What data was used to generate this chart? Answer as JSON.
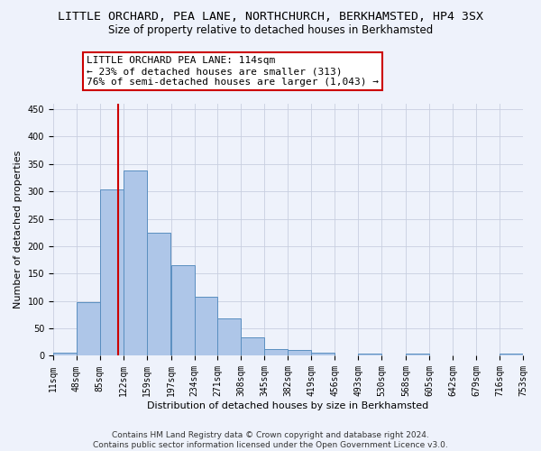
{
  "title_line1": "LITTLE ORCHARD, PEA LANE, NORTHCHURCH, BERKHAMSTED, HP4 3SX",
  "title_line2": "Size of property relative to detached houses in Berkhamsted",
  "xlabel": "Distribution of detached houses by size in Berkhamsted",
  "ylabel": "Number of detached properties",
  "bin_edges": [
    11,
    48,
    85,
    122,
    159,
    197,
    234,
    271,
    308,
    345,
    382,
    419,
    456,
    493,
    530,
    568,
    605,
    642,
    679,
    716,
    753
  ],
  "bin_labels": [
    "11sqm",
    "48sqm",
    "85sqm",
    "122sqm",
    "159sqm",
    "197sqm",
    "234sqm",
    "271sqm",
    "308sqm",
    "345sqm",
    "382sqm",
    "419sqm",
    "456sqm",
    "493sqm",
    "530sqm",
    "568sqm",
    "605sqm",
    "642sqm",
    "679sqm",
    "716sqm",
    "753sqm"
  ],
  "bar_heights": [
    5,
    98,
    303,
    338,
    225,
    165,
    108,
    68,
    33,
    13,
    11,
    6,
    0,
    4,
    0,
    4,
    0,
    0,
    0,
    4
  ],
  "bar_color": "#aec6e8",
  "bar_edge_color": "#5a8fc0",
  "vline_x": 114,
  "vline_color": "#cc0000",
  "annotation_line1": "LITTLE ORCHARD PEA LANE: 114sqm",
  "annotation_line2": "← 23% of detached houses are smaller (313)",
  "annotation_line3": "76% of semi-detached houses are larger (1,043) →",
  "annotation_box_color": "#ffffff",
  "annotation_box_edge": "#cc0000",
  "ylim": [
    0,
    460
  ],
  "yticks": [
    0,
    50,
    100,
    150,
    200,
    250,
    300,
    350,
    400,
    450
  ],
  "bg_color": "#eef2fb",
  "plot_bg": "#eef2fb",
  "footer_text": "Contains HM Land Registry data © Crown copyright and database right 2024.\nContains public sector information licensed under the Open Government Licence v3.0.",
  "title_fontsize": 9.5,
  "subtitle_fontsize": 8.5,
  "axis_label_fontsize": 8,
  "tick_fontsize": 7,
  "annotation_fontsize": 8,
  "footer_fontsize": 6.5
}
